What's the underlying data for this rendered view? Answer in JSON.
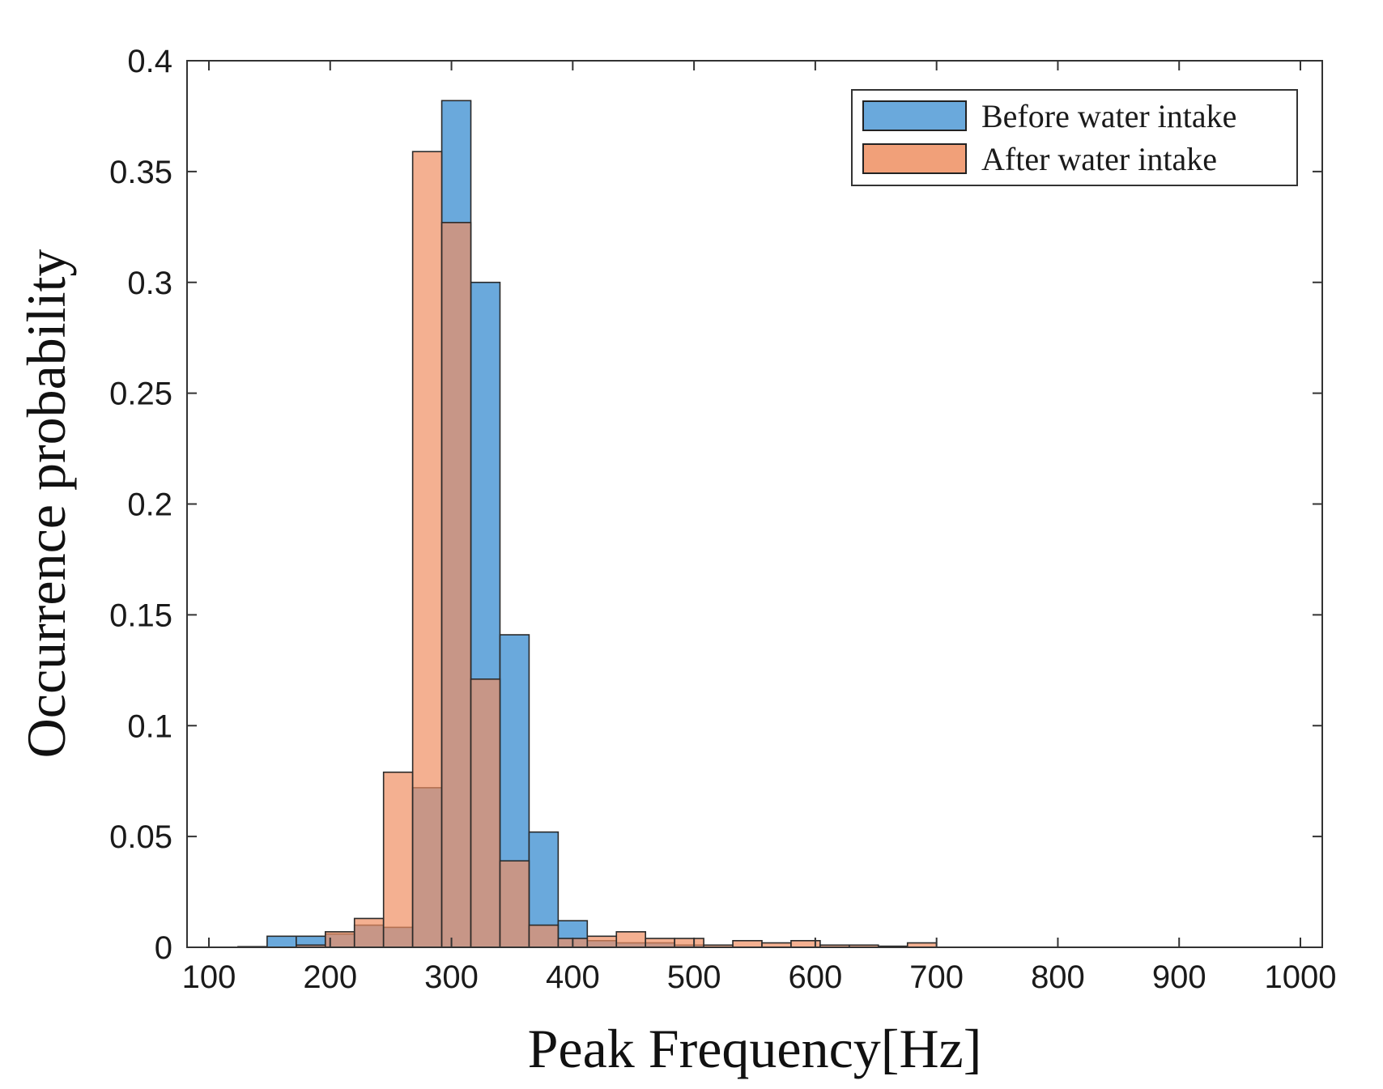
{
  "chart_data": {
    "type": "bar",
    "subtype": "overlaid-histogram",
    "title": "",
    "xlabel": "Peak Frequency[Hz]",
    "ylabel": "Occurrence probability",
    "xlim": [
      100,
      1000
    ],
    "ylim": [
      0,
      0.4
    ],
    "xticks": [
      100,
      200,
      300,
      400,
      500,
      600,
      700,
      800,
      900,
      1000
    ],
    "xtick_labels": [
      "100",
      "200",
      "300",
      "400",
      "500",
      "600",
      "700",
      "800",
      "900",
      "1000"
    ],
    "yticks": [
      0,
      0.05,
      0.1,
      0.15,
      0.2,
      0.25,
      0.3,
      0.35,
      0.4
    ],
    "ytick_labels": [
      "0",
      "0.05",
      "0.1",
      "0.15",
      "0.2",
      "0.25",
      "0.3",
      "0.35",
      "0.4"
    ],
    "legend_position": "top-right",
    "series": [
      {
        "name": "Before water intake",
        "color": "#5aa0d8",
        "bins": [
          {
            "start": 124,
            "end": 148,
            "value": 0.0003
          },
          {
            "start": 148,
            "end": 172,
            "value": 0.005
          },
          {
            "start": 172,
            "end": 196,
            "value": 0.005
          },
          {
            "start": 196,
            "end": 220,
            "value": 0.006
          },
          {
            "start": 220,
            "end": 244,
            "value": 0.01
          },
          {
            "start": 244,
            "end": 268,
            "value": 0.009
          },
          {
            "start": 268,
            "end": 292,
            "value": 0.072
          },
          {
            "start": 292,
            "end": 316,
            "value": 0.382
          },
          {
            "start": 316,
            "end": 340,
            "value": 0.3
          },
          {
            "start": 340,
            "end": 364,
            "value": 0.141
          },
          {
            "start": 364,
            "end": 388,
            "value": 0.052
          },
          {
            "start": 388,
            "end": 412,
            "value": 0.012
          },
          {
            "start": 412,
            "end": 436,
            "value": 0.003
          },
          {
            "start": 436,
            "end": 460,
            "value": 0.002
          },
          {
            "start": 460,
            "end": 484,
            "value": 0.002
          },
          {
            "start": 484,
            "end": 508,
            "value": 0.001
          }
        ]
      },
      {
        "name": "After water intake",
        "color": "#ef8f62",
        "bins": [
          {
            "start": 172,
            "end": 196,
            "value": 0.001
          },
          {
            "start": 196,
            "end": 220,
            "value": 0.007
          },
          {
            "start": 220,
            "end": 244,
            "value": 0.013
          },
          {
            "start": 244,
            "end": 268,
            "value": 0.079
          },
          {
            "start": 268,
            "end": 292,
            "value": 0.359
          },
          {
            "start": 292,
            "end": 316,
            "value": 0.327
          },
          {
            "start": 316,
            "end": 340,
            "value": 0.121
          },
          {
            "start": 340,
            "end": 364,
            "value": 0.039
          },
          {
            "start": 364,
            "end": 388,
            "value": 0.01
          },
          {
            "start": 388,
            "end": 412,
            "value": 0.004
          },
          {
            "start": 412,
            "end": 436,
            "value": 0.005
          },
          {
            "start": 436,
            "end": 460,
            "value": 0.007
          },
          {
            "start": 460,
            "end": 484,
            "value": 0.004
          },
          {
            "start": 484,
            "end": 508,
            "value": 0.004
          },
          {
            "start": 508,
            "end": 532,
            "value": 0.001
          },
          {
            "start": 532,
            "end": 556,
            "value": 0.003
          },
          {
            "start": 556,
            "end": 580,
            "value": 0.002
          },
          {
            "start": 580,
            "end": 604,
            "value": 0.003
          },
          {
            "start": 604,
            "end": 628,
            "value": 0.001
          },
          {
            "start": 628,
            "end": 652,
            "value": 0.001
          },
          {
            "start": 652,
            "end": 676,
            "value": 0.0005
          },
          {
            "start": 676,
            "end": 700,
            "value": 0.002
          }
        ]
      }
    ]
  }
}
